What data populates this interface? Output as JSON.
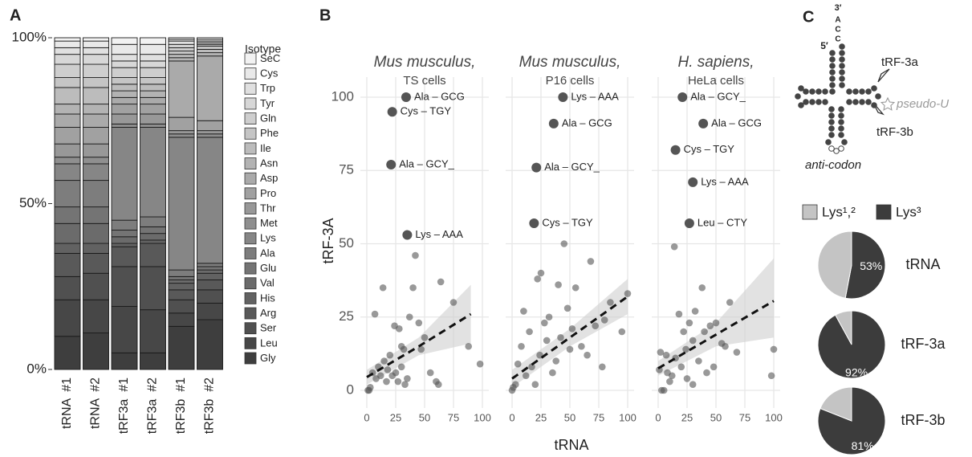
{
  "panels": [
    "A",
    "B",
    "C"
  ],
  "chart_data": [
    {
      "type": "stacked-bar",
      "categories": [
        "tRNA  #1",
        "tRNA  #2",
        "tRF3a  #1",
        "tRF3a  #2",
        "tRF3b  #1",
        "tRF3b  #2"
      ],
      "ylim": [
        0,
        100
      ],
      "yticks": [
        {
          "value": 0,
          "label": "0%"
        },
        {
          "value": 50,
          "label": "50%"
        },
        {
          "value": 100,
          "label": "100%"
        }
      ],
      "legend_title": "Isotype",
      "series": [
        {
          "name": "SeC",
          "color": "#f2f2f2",
          "values": [
            1,
            1,
            2,
            2,
            0.5,
            0.5
          ]
        },
        {
          "name": "Cys",
          "color": "#e9e9e9",
          "values": [
            2,
            2,
            3,
            3,
            0.5,
            0.5
          ]
        },
        {
          "name": "Trp",
          "color": "#e0e0e0",
          "values": [
            2,
            2,
            2,
            2,
            1,
            0.5
          ]
        },
        {
          "name": "Tyr",
          "color": "#d7d7d7",
          "values": [
            3,
            3,
            2,
            2,
            1,
            0.5
          ]
        },
        {
          "name": "Gln",
          "color": "#cecece",
          "values": [
            4,
            4,
            3,
            3,
            1,
            0.5
          ]
        },
        {
          "name": "Phe",
          "color": "#c5c5c5",
          "values": [
            3,
            3,
            2,
            2,
            1,
            1
          ]
        },
        {
          "name": "Ile",
          "color": "#bcbcbc",
          "values": [
            5,
            5,
            2,
            2,
            1,
            1
          ]
        },
        {
          "name": "Asn",
          "color": "#b3b3b3",
          "values": [
            3,
            3,
            2,
            2,
            1,
            1
          ]
        },
        {
          "name": "Asp",
          "color": "#aaaaaa",
          "values": [
            4,
            4,
            2,
            2,
            17,
            19.5
          ]
        },
        {
          "name": "Pro",
          "color": "#a1a1a1",
          "values": [
            5,
            5,
            3,
            3,
            4,
            3
          ]
        },
        {
          "name": "Thr",
          "color": "#989898",
          "values": [
            4,
            4,
            3,
            3,
            1,
            1
          ]
        },
        {
          "name": "Met",
          "color": "#8f8f8f",
          "values": [
            2,
            2,
            1,
            1,
            1,
            1
          ]
        },
        {
          "name": "Lys",
          "color": "#868686",
          "values": [
            5,
            5,
            28,
            27,
            40,
            38
          ]
        },
        {
          "name": "Ala",
          "color": "#7d7d7d",
          "values": [
            8,
            8,
            3,
            3,
            2,
            1
          ]
        },
        {
          "name": "Glu",
          "color": "#747474",
          "values": [
            5,
            5,
            2,
            2,
            1,
            1
          ]
        },
        {
          "name": "Val",
          "color": "#6b6b6b",
          "values": [
            6,
            6,
            2,
            2,
            1,
            1
          ]
        },
        {
          "name": "His",
          "color": "#626262",
          "values": [
            3,
            3,
            1,
            1,
            2,
            2
          ]
        },
        {
          "name": "Arg",
          "color": "#595959",
          "values": [
            7,
            6,
            6,
            7,
            3,
            3
          ]
        },
        {
          "name": "Ser",
          "color": "#505050",
          "values": [
            7,
            8,
            12,
            13,
            4,
            4
          ]
        },
        {
          "name": "Leu",
          "color": "#474747",
          "values": [
            11,
            10,
            14,
            13,
            4,
            5
          ]
        },
        {
          "name": "Gly",
          "color": "#3e3e3e",
          "values": [
            10,
            11,
            5,
            5,
            13,
            15
          ]
        }
      ]
    },
    {
      "type": "scatter",
      "xlabel": "tRNA",
      "ylabel": "tRF-3A",
      "xlim": [
        0,
        100
      ],
      "ylim": [
        0,
        100
      ],
      "xticks": [
        0,
        25,
        50,
        75,
        100
      ],
      "yticks": [
        0,
        25,
        50,
        75,
        100
      ],
      "grid": true,
      "point_color": "#555555",
      "trend_color": "#111111",
      "ribbon_color": "#cfcfcf",
      "facets": [
        {
          "title": "Mus musculus,",
          "subtitle": "TS cells",
          "points": {
            "x": [
              1,
              2,
              3,
              5,
              7,
              8,
              10,
              12,
              14,
              15,
              17,
              18,
              20,
              22,
              24,
              25,
              27,
              28,
              30,
              32,
              33,
              35,
              37,
              40,
              42,
              45,
              47,
              50,
              55,
              60,
              64,
              75,
              88,
              98,
              62,
              30
            ],
            "y": [
              0,
              0,
              1,
              6,
              26,
              4,
              8,
              5,
              35,
              10,
              3,
              7,
              12,
              5,
              22,
              6,
              3,
              21,
              8,
              14,
              2,
              4,
              25,
              35,
              46,
              23,
              14,
              18,
              6,
              3,
              37,
              30,
              15,
              9,
              2,
              15
            ]
          },
          "labeled": {
            "x": [
              34,
              22,
              21,
              35
            ],
            "y": [
              100,
              95,
              77,
              53
            ],
            "labels": [
              "Ala – GCG",
              "Cys – TGY",
              "Ala – GCY_",
              "Lys – AAA"
            ]
          },
          "trend": {
            "x": [
              0,
              45,
              90
            ],
            "y": [
              4.5,
              15,
              26
            ],
            "lower": [
              2,
              12,
              16
            ],
            "upper": [
              7,
              18,
              36
            ]
          }
        },
        {
          "title": "Mus musculus,",
          "subtitle": "P16 cells",
          "points": {
            "x": [
              0,
              1,
              3,
              5,
              8,
              10,
              12,
              15,
              17,
              20,
              22,
              24,
              25,
              28,
              30,
              32,
              35,
              38,
              40,
              42,
              45,
              48,
              50,
              52,
              55,
              60,
              65,
              68,
              72,
              80,
              85,
              95,
              100,
              78
            ],
            "y": [
              0,
              1,
              2,
              9,
              15,
              27,
              5,
              20,
              8,
              2,
              38,
              12,
              40,
              23,
              17,
              25,
              6,
              10,
              36,
              18,
              50,
              28,
              14,
              21,
              35,
              15,
              12,
              44,
              22,
              24,
              30,
              20,
              33,
              8
            ]
          },
          "labeled": {
            "x": [
              44,
              36,
              21,
              19
            ],
            "y": [
              100,
              91,
              76,
              57
            ],
            "labels": [
              "Lys – AAA",
              "Ala – GCG",
              "Ala – GCY_",
              "Cys – TGY"
            ]
          },
          "trend": {
            "x": [
              0,
              50,
              100
            ],
            "y": [
              4,
              18,
              32
            ],
            "lower": [
              1,
              15,
              26
            ],
            "upper": [
              7,
              21,
              38
            ]
          }
        },
        {
          "title": "H. sapiens,",
          "subtitle": "HeLa cells",
          "points": {
            "x": [
              1,
              2,
              3,
              5,
              7,
              8,
              10,
              12,
              14,
              15,
              18,
              20,
              22,
              24,
              25,
              27,
              30,
              32,
              35,
              38,
              40,
              42,
              45,
              48,
              50,
              55,
              58,
              62,
              68,
              98,
              100,
              30
            ],
            "y": [
              7,
              13,
              0,
              0,
              12,
              6,
              3,
              5,
              49,
              11,
              26,
              8,
              20,
              14,
              4,
              23,
              17,
              27,
              10,
              35,
              20,
              6,
              22,
              8,
              23,
              16,
              15,
              30,
              13,
              5,
              14,
              2
            ]
          },
          "labeled": {
            "x": [
              21,
              39,
              15,
              30,
              27
            ],
            "y": [
              100,
              91,
              82,
              71,
              57
            ],
            "labels": [
              "Ala – GCY_",
              "Ala – GCG",
              "Cys – TGY",
              "Lys – AAA",
              "Leu – CTY"
            ]
          },
          "trend": {
            "x": [
              0,
              50,
              100
            ],
            "y": [
              7.5,
              19,
              30.5
            ],
            "lower": [
              5,
              15,
              18
            ],
            "upper": [
              10,
              23,
              45
            ]
          }
        }
      ]
    },
    {
      "type": "pie",
      "categories": [
        "tRNA",
        "tRF-3a",
        "tRF-3b"
      ],
      "series": [
        {
          "name": "Lys¹,²",
          "color": "#c4c4c4",
          "values": [
            47,
            8,
            19
          ]
        },
        {
          "name": "Lys³",
          "color": "#3c3c3c",
          "values": [
            53,
            92,
            81
          ],
          "value_labels": [
            "53%",
            "92%",
            "81%"
          ]
        }
      ]
    }
  ],
  "diagram": {
    "labels": [
      "3′",
      "A",
      "C",
      "C",
      "5′",
      "tRF-3a",
      "tRF-3b",
      "pseudo-U",
      "anti-codon"
    ]
  }
}
